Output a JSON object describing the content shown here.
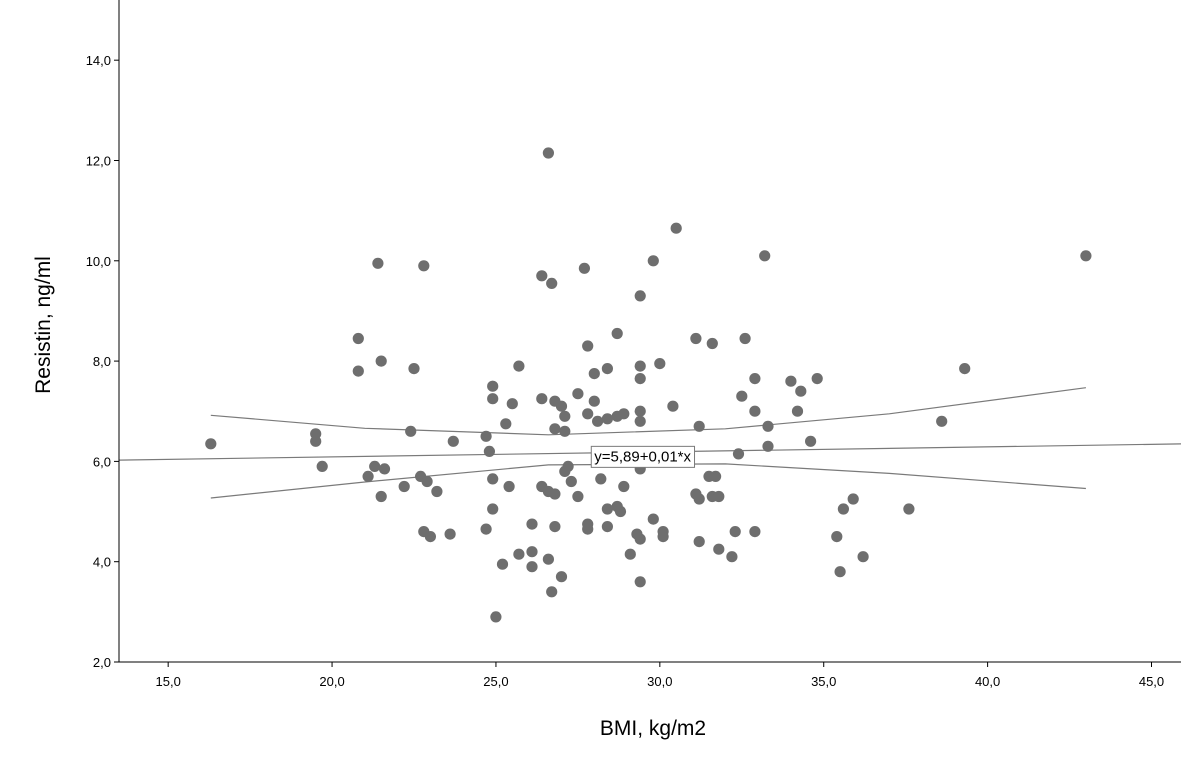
{
  "chart_data": {
    "type": "scatter",
    "xlabel": "BMI, kg/m2",
    "ylabel": "Resistin, ng/ml",
    "xlim": [
      13.5,
      45.9
    ],
    "ylim": [
      2.0,
      15.2
    ],
    "x_ticks": [
      "15,0",
      "20,0",
      "25,0",
      "30,0",
      "35,0",
      "40,0",
      "45,0"
    ],
    "x_tick_values": [
      15,
      20,
      25,
      30,
      35,
      40,
      45
    ],
    "y_ticks": [
      "2,0",
      "4,0",
      "6,0",
      "8,0",
      "10,0",
      "12,0",
      "14,0"
    ],
    "y_tick_values": [
      2,
      4,
      6,
      8,
      10,
      12,
      14
    ],
    "grid": false,
    "marker_color": "#6e6e6e",
    "line_color": "#7a7a7a",
    "fit_equation": "y=5,89+0,01*x",
    "fit_equation_position": [
      28.0,
      6.2
    ],
    "fit_line": {
      "intercept": 5.89,
      "slope": 0.01,
      "x_range": [
        13.5,
        45.9
      ]
    },
    "ci_upper": [
      [
        16.3,
        6.92
      ],
      [
        21.0,
        6.66
      ],
      [
        26.6,
        6.53
      ],
      [
        32.0,
        6.65
      ],
      [
        37.0,
        6.95
      ],
      [
        43.0,
        7.47
      ]
    ],
    "ci_lower": [
      [
        16.3,
        5.27
      ],
      [
        21.0,
        5.59
      ],
      [
        26.6,
        5.93
      ],
      [
        32.0,
        5.95
      ],
      [
        37.0,
        5.76
      ],
      [
        43.0,
        5.46
      ]
    ],
    "points": [
      [
        16.3,
        6.35
      ],
      [
        19.5,
        6.55
      ],
      [
        19.5,
        6.4
      ],
      [
        19.7,
        5.9
      ],
      [
        20.8,
        8.45
      ],
      [
        20.8,
        7.8
      ],
      [
        21.1,
        5.7
      ],
      [
        21.3,
        5.9
      ],
      [
        21.4,
        9.95
      ],
      [
        21.5,
        8.0
      ],
      [
        21.5,
        5.3
      ],
      [
        21.6,
        5.85
      ],
      [
        22.2,
        5.5
      ],
      [
        22.4,
        6.6
      ],
      [
        22.5,
        7.85
      ],
      [
        22.7,
        5.7
      ],
      [
        22.8,
        9.9
      ],
      [
        22.8,
        4.6
      ],
      [
        22.9,
        5.6
      ],
      [
        23.0,
        4.5
      ],
      [
        23.2,
        5.4
      ],
      [
        23.6,
        4.55
      ],
      [
        23.7,
        6.4
      ],
      [
        24.7,
        6.5
      ],
      [
        24.7,
        4.65
      ],
      [
        24.8,
        6.2
      ],
      [
        24.9,
        5.65
      ],
      [
        24.9,
        7.5
      ],
      [
        24.9,
        7.25
      ],
      [
        24.9,
        5.05
      ],
      [
        25.0,
        2.9
      ],
      [
        25.2,
        3.95
      ],
      [
        25.3,
        6.75
      ],
      [
        25.4,
        5.5
      ],
      [
        25.5,
        7.15
      ],
      [
        25.7,
        7.9
      ],
      [
        25.7,
        4.15
      ],
      [
        26.1,
        4.75
      ],
      [
        26.1,
        4.2
      ],
      [
        26.1,
        3.9
      ],
      [
        26.4,
        9.7
      ],
      [
        26.4,
        7.25
      ],
      [
        26.4,
        5.5
      ],
      [
        26.6,
        12.15
      ],
      [
        26.6,
        5.4
      ],
      [
        26.6,
        4.05
      ],
      [
        26.7,
        3.4
      ],
      [
        26.7,
        9.55
      ],
      [
        26.8,
        7.2
      ],
      [
        26.8,
        6.65
      ],
      [
        26.8,
        5.35
      ],
      [
        26.8,
        4.7
      ],
      [
        27.0,
        7.1
      ],
      [
        27.0,
        3.7
      ],
      [
        27.1,
        6.9
      ],
      [
        27.1,
        6.6
      ],
      [
        27.1,
        5.8
      ],
      [
        27.2,
        5.9
      ],
      [
        27.3,
        5.6
      ],
      [
        27.5,
        7.35
      ],
      [
        27.5,
        5.3
      ],
      [
        27.7,
        9.85
      ],
      [
        27.8,
        8.3
      ],
      [
        27.8,
        6.95
      ],
      [
        27.8,
        4.75
      ],
      [
        27.8,
        4.65
      ],
      [
        28.0,
        7.75
      ],
      [
        28.0,
        7.2
      ],
      [
        28.1,
        6.8
      ],
      [
        28.2,
        5.65
      ],
      [
        28.4,
        7.85
      ],
      [
        28.4,
        6.85
      ],
      [
        28.4,
        5.05
      ],
      [
        28.4,
        4.7
      ],
      [
        28.7,
        8.55
      ],
      [
        28.7,
        6.9
      ],
      [
        28.7,
        5.1
      ],
      [
        28.8,
        5.0
      ],
      [
        28.9,
        6.95
      ],
      [
        28.9,
        5.5
      ],
      [
        29.1,
        4.15
      ],
      [
        29.3,
        4.55
      ],
      [
        29.4,
        9.3
      ],
      [
        29.4,
        7.9
      ],
      [
        29.4,
        7.65
      ],
      [
        29.4,
        7.0
      ],
      [
        29.4,
        6.8
      ],
      [
        29.4,
        5.85
      ],
      [
        29.4,
        4.45
      ],
      [
        29.4,
        3.6
      ],
      [
        29.8,
        10.0
      ],
      [
        29.8,
        4.85
      ],
      [
        30.0,
        7.95
      ],
      [
        30.1,
        4.6
      ],
      [
        30.1,
        4.5
      ],
      [
        30.4,
        7.1
      ],
      [
        30.5,
        10.65
      ],
      [
        30.5,
        6.0
      ],
      [
        31.1,
        8.45
      ],
      [
        31.1,
        5.35
      ],
      [
        31.2,
        6.7
      ],
      [
        31.2,
        5.25
      ],
      [
        31.2,
        4.4
      ],
      [
        31.5,
        5.7
      ],
      [
        31.6,
        8.35
      ],
      [
        31.6,
        5.3
      ],
      [
        31.7,
        5.7
      ],
      [
        31.8,
        5.3
      ],
      [
        31.8,
        4.25
      ],
      [
        32.2,
        4.1
      ],
      [
        32.3,
        4.6
      ],
      [
        32.4,
        6.15
      ],
      [
        32.5,
        7.3
      ],
      [
        32.6,
        8.45
      ],
      [
        32.9,
        7.65
      ],
      [
        32.9,
        7.0
      ],
      [
        32.9,
        4.6
      ],
      [
        33.2,
        10.1
      ],
      [
        33.3,
        6.7
      ],
      [
        33.3,
        6.3
      ],
      [
        34.0,
        7.6
      ],
      [
        34.2,
        7.0
      ],
      [
        34.3,
        7.4
      ],
      [
        34.6,
        6.4
      ],
      [
        34.8,
        7.65
      ],
      [
        35.4,
        4.5
      ],
      [
        35.5,
        3.8
      ],
      [
        35.6,
        5.05
      ],
      [
        35.9,
        5.25
      ],
      [
        36.2,
        4.1
      ],
      [
        37.6,
        5.05
      ],
      [
        38.6,
        6.8
      ],
      [
        39.3,
        7.85
      ],
      [
        43.0,
        10.1
      ]
    ]
  }
}
